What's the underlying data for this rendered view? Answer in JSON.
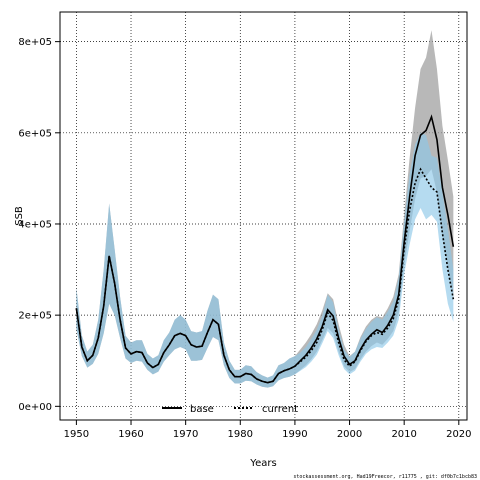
{
  "chart_data": {
    "type": "area",
    "xlabel": "Years",
    "ylabel": "SSB",
    "xlim": [
      1947,
      2021.5
    ],
    "ylim": [
      -30000,
      865000
    ],
    "x_ticks": [
      1950,
      1960,
      1970,
      1980,
      1990,
      2000,
      2010,
      2020
    ],
    "x_tick_labels": [
      "1950",
      "1960",
      "1970",
      "1980",
      "1990",
      "2000",
      "2010",
      "2020"
    ],
    "y_ticks": [
      0,
      200000,
      400000,
      600000,
      800000
    ],
    "y_tick_labels": [
      "0e+00",
      "2e+05",
      "4e+05",
      "6e+05",
      "8e+05"
    ],
    "grid": true,
    "legend_placement": "bottom-center",
    "footnote": "stockassessment.org, Had19Freecor, r11775 , git: df0b7c1bcb83",
    "years": [
      1950,
      1951,
      1952,
      1953,
      1954,
      1955,
      1956,
      1957,
      1958,
      1959,
      1960,
      1961,
      1962,
      1963,
      1964,
      1965,
      1966,
      1967,
      1968,
      1969,
      1970,
      1971,
      1972,
      1973,
      1974,
      1975,
      1976,
      1977,
      1978,
      1979,
      1980,
      1981,
      1982,
      1983,
      1984,
      1985,
      1986,
      1987,
      1988,
      1989,
      1990,
      1991,
      1992,
      1993,
      1994,
      1995,
      1996,
      1997,
      1998,
      1999,
      2000,
      2001,
      2002,
      2003,
      2004,
      2005,
      2006,
      2007,
      2008,
      2009,
      2010,
      2011,
      2012,
      2013,
      2014,
      2015,
      2016,
      2017,
      2018,
      2019
    ],
    "series": [
      {
        "name": "base",
        "line_color": "#000000",
        "band_color": "#9a9a9a",
        "values": [
          215000,
          130000,
          100000,
          112000,
          150000,
          220000,
          330000,
          270000,
          190000,
          128000,
          115000,
          120000,
          118000,
          95000,
          85000,
          92000,
          118000,
          135000,
          155000,
          160000,
          155000,
          135000,
          130000,
          132000,
          162000,
          190000,
          180000,
          112000,
          80000,
          65000,
          65000,
          72000,
          70000,
          60000,
          55000,
          52000,
          55000,
          72000,
          78000,
          82000,
          88000,
          100000,
          112000,
          128000,
          148000,
          175000,
          212000,
          198000,
          150000,
          110000,
          92000,
          100000,
          125000,
          145000,
          158000,
          168000,
          162000,
          178000,
          200000,
          245000,
          360000,
          460000,
          550000,
          595000,
          605000,
          635000,
          585000,
          480000,
          420000,
          350000
        ],
        "lower": [
          170000,
          110000,
          85000,
          93000,
          115000,
          160000,
          225000,
          200000,
          150000,
          105000,
          95000,
          100000,
          98000,
          80000,
          70000,
          76000,
          98000,
          112000,
          125000,
          130000,
          125000,
          100000,
          100000,
          102000,
          128000,
          152000,
          145000,
          90000,
          62000,
          50000,
          50000,
          56000,
          55000,
          48000,
          43000,
          41000,
          44000,
          57000,
          62000,
          65000,
          70000,
          80000,
          90000,
          103000,
          120000,
          145000,
          172000,
          160000,
          120000,
          88000,
          75000,
          82000,
          103000,
          120000,
          132000,
          140000,
          135000,
          148000,
          165000,
          205000,
          310000,
          385000,
          455000,
          500000,
          505000,
          520000,
          470000,
          375000,
          305000,
          235000
        ],
        "upper": [
          260000,
          155000,
          120000,
          135000,
          190000,
          300000,
          445000,
          345000,
          240000,
          155000,
          140000,
          145000,
          145000,
          115000,
          105000,
          112000,
          145000,
          162000,
          190000,
          200000,
          190000,
          165000,
          162000,
          165000,
          210000,
          245000,
          235000,
          140000,
          100000,
          80000,
          80000,
          90000,
          88000,
          75000,
          68000,
          63000,
          68000,
          90000,
          95000,
          105000,
          110000,
          125000,
          140000,
          158000,
          180000,
          210000,
          248000,
          235000,
          180000,
          135000,
          110000,
          120000,
          152000,
          175000,
          190000,
          198000,
          195000,
          215000,
          240000,
          290000,
          420000,
          545000,
          655000,
          740000,
          765000,
          825000,
          740000,
          615000,
          540000,
          460000
        ]
      },
      {
        "name": "current",
        "line_color": "#000000",
        "band_color": "#8ec8e8",
        "values": [
          215000,
          130000,
          100000,
          112000,
          150000,
          220000,
          330000,
          270000,
          190000,
          128000,
          115000,
          120000,
          118000,
          95000,
          85000,
          92000,
          118000,
          135000,
          155000,
          160000,
          155000,
          135000,
          130000,
          132000,
          162000,
          190000,
          180000,
          112000,
          80000,
          65000,
          65000,
          72000,
          70000,
          60000,
          55000,
          52000,
          55000,
          72000,
          78000,
          82000,
          88000,
          98000,
          108000,
          122000,
          140000,
          168000,
          205000,
          188000,
          140000,
          102000,
          88000,
          98000,
          122000,
          142000,
          155000,
          162000,
          158000,
          172000,
          192000,
          235000,
          345000,
          430000,
          490000,
          520000,
          500000,
          480000,
          470000,
          380000,
          300000,
          235000
        ],
        "lower": [
          170000,
          110000,
          85000,
          93000,
          115000,
          160000,
          225000,
          200000,
          150000,
          105000,
          95000,
          100000,
          98000,
          80000,
          70000,
          76000,
          98000,
          112000,
          125000,
          130000,
          125000,
          100000,
          100000,
          102000,
          128000,
          152000,
          145000,
          90000,
          62000,
          50000,
          50000,
          56000,
          55000,
          48000,
          43000,
          41000,
          44000,
          57000,
          62000,
          65000,
          70000,
          78000,
          86000,
          98000,
          113000,
          138000,
          165000,
          150000,
          112000,
          82000,
          70000,
          78000,
          98000,
          115000,
          125000,
          130000,
          128000,
          140000,
          155000,
          190000,
          290000,
          355000,
          410000,
          435000,
          410000,
          420000,
          405000,
          300000,
          225000,
          185000
        ],
        "upper": [
          260000,
          155000,
          120000,
          135000,
          190000,
          300000,
          445000,
          345000,
          240000,
          155000,
          140000,
          145000,
          145000,
          115000,
          105000,
          112000,
          145000,
          162000,
          190000,
          200000,
          190000,
          165000,
          162000,
          165000,
          210000,
          245000,
          235000,
          140000,
          100000,
          80000,
          80000,
          90000,
          88000,
          75000,
          68000,
          63000,
          68000,
          90000,
          95000,
          105000,
          110000,
          118000,
          130000,
          148000,
          168000,
          198000,
          245000,
          228000,
          170000,
          125000,
          108000,
          120000,
          148000,
          170000,
          185000,
          195000,
          190000,
          208000,
          230000,
          282000,
          405000,
          510000,
          575000,
          600000,
          595000,
          550000,
          545000,
          470000,
          390000,
          300000
        ]
      }
    ]
  }
}
